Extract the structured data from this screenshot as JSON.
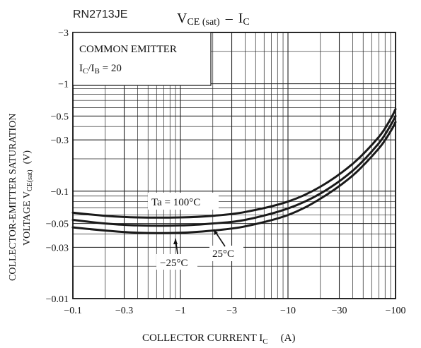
{
  "part_number": "RN2713JE",
  "chart_title": {
    "main": "V",
    "main_sub": "CE (sat)",
    "dash": "–",
    "x": "I",
    "x_sub": "C"
  },
  "annotation": {
    "line1": "COMMON EMITTER",
    "line2_main": "I",
    "line2_sub1": "C",
    "line2_mid": "/I",
    "line2_sub2": "B",
    "line2_end": " = 20"
  },
  "axes": {
    "xlabel_main": "COLLECTOR CURRENT  I",
    "xlabel_sub": "C",
    "xlabel_unit": "(A)",
    "ylabel_line1": "COLLECTOR-EMITTER SATURATION",
    "ylabel_line2_a": "VOLTAGE   V",
    "ylabel_line2_sub": "CE(sat)",
    "ylabel_line2_unit": "(V)"
  },
  "colors": {
    "curve": "#1a1a1a",
    "grid": "#222222",
    "background": "#ffffff"
  },
  "chart_data": {
    "type": "line",
    "x_scale": "log",
    "y_scale": "log",
    "x_range_abs": [
      0.1,
      100
    ],
    "y_range_abs": [
      0.01,
      3
    ],
    "x_ticks": [
      {
        "value": 0.1,
        "label": "−0.1"
      },
      {
        "value": 0.3,
        "label": "−0.3"
      },
      {
        "value": 1,
        "label": "−1"
      },
      {
        "value": 3,
        "label": "−3"
      },
      {
        "value": 10,
        "label": "−10"
      },
      {
        "value": 30,
        "label": "−30"
      },
      {
        "value": 100,
        "label": "−100"
      }
    ],
    "y_ticks": [
      {
        "value": 0.01,
        "label": "−0.01"
      },
      {
        "value": 0.03,
        "label": "−0.03"
      },
      {
        "value": 0.05,
        "label": "−0.05"
      },
      {
        "value": 0.1,
        "label": "−0.1"
      },
      {
        "value": 0.3,
        "label": "−0.3"
      },
      {
        "value": 0.5,
        "label": "−0.5"
      },
      {
        "value": 1,
        "label": "−1"
      },
      {
        "value": 3,
        "label": "−3"
      }
    ],
    "series": [
      {
        "name": "Ta = 100°C",
        "x": [
          0.1,
          0.2,
          0.4,
          1,
          2,
          4,
          10,
          20,
          40,
          70,
          90,
          100
        ],
        "y": [
          0.063,
          0.059,
          0.057,
          0.057,
          0.059,
          0.064,
          0.08,
          0.11,
          0.18,
          0.32,
          0.47,
          0.58
        ]
      },
      {
        "name": "25°C",
        "x": [
          0.1,
          0.2,
          0.4,
          1,
          2,
          4,
          10,
          20,
          40,
          70,
          90,
          100
        ],
        "y": [
          0.054,
          0.05,
          0.048,
          0.048,
          0.05,
          0.054,
          0.069,
          0.095,
          0.155,
          0.28,
          0.41,
          0.5
        ]
      },
      {
        "name": "−25°C",
        "x": [
          0.1,
          0.2,
          0.4,
          1,
          2,
          4,
          10,
          20,
          40,
          70,
          90,
          100
        ],
        "y": [
          0.046,
          0.043,
          0.041,
          0.041,
          0.043,
          0.047,
          0.06,
          0.085,
          0.14,
          0.25,
          0.36,
          0.44
        ]
      }
    ]
  }
}
